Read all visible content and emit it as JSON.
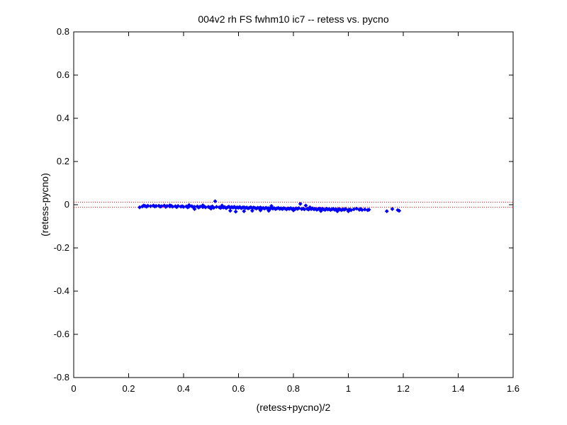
{
  "chart_data": {
    "type": "scatter",
    "title": "004v2 rh FS fwhm10 ic7 -- retess vs. pycno",
    "xlabel": "(retess+pycno)/2",
    "ylabel": "(retess-pycno)",
    "xlim": [
      0,
      1.6
    ],
    "ylim": [
      -0.8,
      0.8
    ],
    "xticks": [
      0,
      0.2,
      0.4,
      0.6,
      0.8,
      1.0,
      1.2,
      1.4,
      1.6
    ],
    "xtick_labels": [
      "0",
      "0.2",
      "0.4",
      "0.6",
      "0.8",
      "1",
      "1.2",
      "1.4",
      "1.6"
    ],
    "yticks": [
      -0.8,
      -0.6,
      -0.4,
      -0.2,
      0,
      0.2,
      0.4,
      0.6,
      0.8
    ],
    "ytick_labels": [
      "-0.8",
      "-0.6",
      "-0.4",
      "-0.2",
      "0",
      "0.2",
      "0.4",
      "0.6",
      "0.8"
    ],
    "grid": false,
    "point_color": "#0000ff",
    "reference_lines": {
      "y": [
        0.012,
        -0.012
      ],
      "color": "#ff0000",
      "style": "dotted"
    },
    "series": [
      {
        "points": [
          [
            0.24,
            -0.012
          ],
          [
            0.25,
            -0.008
          ],
          [
            0.255,
            -0.004
          ],
          [
            0.26,
            -0.006
          ],
          [
            0.265,
            -0.009
          ],
          [
            0.27,
            -0.005
          ],
          [
            0.28,
            -0.007
          ],
          [
            0.29,
            -0.004
          ],
          [
            0.295,
            -0.008
          ],
          [
            0.3,
            -0.006
          ],
          [
            0.31,
            -0.005
          ],
          [
            0.315,
            -0.009
          ],
          [
            0.32,
            -0.007
          ],
          [
            0.33,
            -0.004
          ],
          [
            0.335,
            -0.01
          ],
          [
            0.34,
            -0.006
          ],
          [
            0.35,
            -0.008
          ],
          [
            0.355,
            -0.005
          ],
          [
            0.36,
            -0.009
          ],
          [
            0.37,
            -0.007
          ],
          [
            0.375,
            -0.011
          ],
          [
            0.38,
            -0.006
          ],
          [
            0.39,
            -0.009
          ],
          [
            0.395,
            -0.007
          ],
          [
            0.4,
            -0.01
          ],
          [
            0.41,
            -0.008
          ],
          [
            0.415,
            -0.012
          ],
          [
            0.42,
            -0.009
          ],
          [
            0.43,
            -0.007
          ],
          [
            0.435,
            -0.011
          ],
          [
            0.44,
            -0.01
          ],
          [
            0.45,
            -0.008
          ],
          [
            0.455,
            -0.013
          ],
          [
            0.46,
            -0.009
          ],
          [
            0.47,
            -0.011
          ],
          [
            0.475,
            -0.008
          ],
          [
            0.48,
            -0.012
          ],
          [
            0.49,
            -0.01
          ],
          [
            0.495,
            -0.013
          ],
          [
            0.5,
            -0.011
          ],
          [
            0.505,
            -0.008
          ],
          [
            0.51,
            -0.014
          ],
          [
            0.515,
            0.016
          ],
          [
            0.52,
            -0.01
          ],
          [
            0.53,
            -0.012
          ],
          [
            0.535,
            -0.015
          ],
          [
            0.54,
            -0.01
          ],
          [
            0.545,
            -0.013
          ],
          [
            0.55,
            -0.011
          ],
          [
            0.555,
            -0.016
          ],
          [
            0.56,
            -0.012
          ],
          [
            0.565,
            -0.009
          ],
          [
            0.57,
            -0.014
          ],
          [
            0.575,
            -0.011
          ],
          [
            0.58,
            -0.013
          ],
          [
            0.585,
            -0.01
          ],
          [
            0.59,
            -0.015
          ],
          [
            0.595,
            -0.012
          ],
          [
            0.6,
            -0.014
          ],
          [
            0.605,
            -0.011
          ],
          [
            0.61,
            -0.016
          ],
          [
            0.615,
            -0.013
          ],
          [
            0.62,
            -0.012
          ],
          [
            0.625,
            -0.015
          ],
          [
            0.63,
            -0.013
          ],
          [
            0.635,
            -0.017
          ],
          [
            0.64,
            -0.014
          ],
          [
            0.645,
            -0.012
          ],
          [
            0.65,
            -0.016
          ],
          [
            0.655,
            -0.013
          ],
          [
            0.66,
            -0.015
          ],
          [
            0.665,
            -0.018
          ],
          [
            0.67,
            -0.014
          ],
          [
            0.675,
            -0.016
          ],
          [
            0.68,
            -0.013
          ],
          [
            0.685,
            -0.017
          ],
          [
            0.69,
            -0.015
          ],
          [
            0.695,
            -0.018
          ],
          [
            0.7,
            -0.014
          ],
          [
            0.705,
            -0.017
          ],
          [
            0.71,
            -0.016
          ],
          [
            0.715,
            -0.019
          ],
          [
            0.72,
            -0.015
          ],
          [
            0.725,
            -0.018
          ],
          [
            0.73,
            -0.016
          ],
          [
            0.735,
            -0.02
          ],
          [
            0.74,
            -0.017
          ],
          [
            0.745,
            -0.015
          ],
          [
            0.75,
            -0.019
          ],
          [
            0.755,
            -0.017
          ],
          [
            0.76,
            -0.02
          ],
          [
            0.765,
            -0.016
          ],
          [
            0.77,
            -0.018
          ],
          [
            0.775,
            -0.021
          ],
          [
            0.78,
            -0.017
          ],
          [
            0.785,
            -0.019
          ],
          [
            0.79,
            -0.016
          ],
          [
            0.795,
            -0.02
          ],
          [
            0.8,
            -0.018
          ],
          [
            0.805,
            -0.021
          ],
          [
            0.81,
            -0.017
          ],
          [
            0.815,
            -0.019
          ],
          [
            0.82,
            -0.016
          ],
          [
            0.825,
            0.004
          ],
          [
            0.83,
            -0.02
          ],
          [
            0.835,
            -0.018
          ],
          [
            0.84,
            -0.021
          ],
          [
            0.845,
            -0.004
          ],
          [
            0.85,
            -0.019
          ],
          [
            0.855,
            -0.022
          ],
          [
            0.86,
            -0.018
          ],
          [
            0.865,
            -0.02
          ],
          [
            0.87,
            -0.017
          ],
          [
            0.875,
            -0.021
          ],
          [
            0.88,
            -0.019
          ],
          [
            0.885,
            -0.023
          ],
          [
            0.89,
            -0.02
          ],
          [
            0.895,
            -0.018
          ],
          [
            0.9,
            -0.022
          ],
          [
            0.905,
            -0.019
          ],
          [
            0.91,
            -0.021
          ],
          [
            0.915,
            -0.024
          ],
          [
            0.92,
            -0.019
          ],
          [
            0.925,
            -0.022
          ],
          [
            0.93,
            -0.02
          ],
          [
            0.935,
            -0.024
          ],
          [
            0.94,
            -0.021
          ],
          [
            0.945,
            -0.019
          ],
          [
            0.95,
            -0.023
          ],
          [
            0.955,
            -0.021
          ],
          [
            0.96,
            -0.024
          ],
          [
            0.965,
            -0.02
          ],
          [
            0.97,
            -0.022
          ],
          [
            0.975,
            -0.025
          ],
          [
            0.98,
            -0.021
          ],
          [
            0.985,
            -0.023
          ],
          [
            0.99,
            -0.02
          ],
          [
            1.0,
            -0.024
          ],
          [
            1.005,
            -0.022
          ],
          [
            1.01,
            -0.025
          ],
          [
            1.02,
            -0.021
          ],
          [
            1.03,
            -0.018
          ],
          [
            1.04,
            -0.023
          ],
          [
            1.045,
            -0.02
          ],
          [
            1.05,
            -0.024
          ],
          [
            1.06,
            -0.022
          ],
          [
            1.07,
            -0.025
          ],
          [
            1.075,
            -0.023
          ],
          [
            0.57,
            -0.028
          ],
          [
            0.65,
            -0.028
          ],
          [
            0.59,
            -0.032
          ],
          [
            0.71,
            -0.028
          ],
          [
            0.8,
            -0.026
          ],
          [
            0.9,
            -0.029
          ],
          [
            0.96,
            -0.03
          ],
          [
            1.0,
            -0.03
          ],
          [
            0.62,
            -0.03
          ],
          [
            0.44,
            -0.02
          ],
          [
            0.5,
            -0.018
          ],
          [
            0.68,
            -0.026
          ],
          [
            0.35,
            -0.003
          ],
          [
            0.42,
            -0.002
          ],
          [
            0.47,
            -0.003
          ],
          [
            0.54,
            -0.004
          ],
          [
            0.72,
            -0.006
          ],
          [
            0.86,
            -0.012
          ],
          [
            1.14,
            -0.03
          ],
          [
            1.16,
            -0.02
          ],
          [
            1.18,
            -0.025
          ],
          [
            1.185,
            -0.028
          ]
        ]
      }
    ]
  }
}
